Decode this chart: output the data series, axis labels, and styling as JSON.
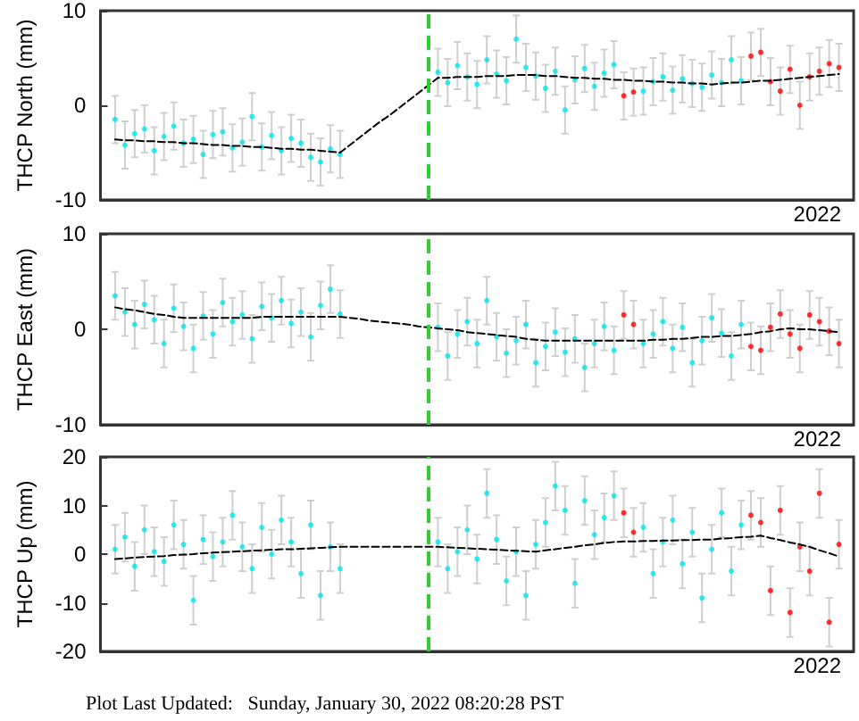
{
  "chart_data": [
    {
      "type": "scatter",
      "ylabel": "THCP North (mm)",
      "ylim": [
        -10,
        10
      ],
      "yticks": [
        -10,
        0,
        10
      ],
      "marker": "circle",
      "annotations": [
        "2022"
      ],
      "categories": [
        null,
        null,
        null,
        null,
        null,
        null,
        null,
        null,
        null,
        null,
        null,
        null,
        null,
        null,
        null,
        null,
        null,
        null,
        null,
        null,
        null,
        null,
        null,
        null,
        null,
        null,
        null,
        null,
        null,
        null,
        null,
        null,
        null,
        null,
        null,
        null,
        null,
        null,
        null,
        null,
        null,
        null,
        null,
        null,
        null,
        null,
        null,
        null,
        null,
        null,
        null,
        null,
        null,
        null,
        null,
        null,
        null,
        null,
        null,
        null,
        null,
        null,
        null,
        null,
        null,
        null,
        null,
        null,
        null,
        null,
        null,
        null,
        null,
        null,
        null,
        null,
        null
      ],
      "series": [
        {
          "color": "#00e5ee",
          "values": [
            null,
            -1.5,
            -4.2,
            -3.0,
            -2.5,
            -4.8,
            -3.3,
            -2.2,
            -4.0,
            -3.6,
            -5.2,
            -3.1,
            -2.8,
            -4.5,
            -3.9,
            -1.2,
            -4.4,
            -3.2,
            -4.8,
            -3.5,
            -4.0,
            -5.5,
            -6.0,
            -4.6,
            -5.2,
            null,
            null,
            null,
            null,
            null,
            null,
            null,
            null,
            null,
            3.5,
            2.4,
            4.2,
            3.0,
            2.2,
            4.8,
            3.3,
            2.6,
            7.0,
            4.0,
            3.1,
            1.8,
            3.6,
            -0.5,
            2.7,
            3.9,
            2.0,
            3.4,
            4.3,
            null,
            null,
            1.5,
            2.5,
            3.0,
            1.6,
            2.8,
            2.3,
            1.9,
            3.2,
            2.4,
            4.8,
            2.6,
            null,
            null,
            null,
            null,
            null,
            null,
            null,
            null,
            null,
            null,
            null
          ],
          "errors": [
            null,
            2.5,
            2.5,
            2.5,
            2.5,
            2.5,
            2.5,
            2.5,
            2.5,
            2.5,
            2.5,
            2.5,
            2.5,
            2.5,
            2.5,
            2.5,
            2.5,
            2.5,
            2.5,
            2.5,
            2.5,
            2.5,
            2.5,
            2.5,
            2.5,
            null,
            null,
            null,
            null,
            null,
            null,
            null,
            null,
            null,
            2.5,
            2.5,
            2.5,
            2.5,
            2.5,
            2.5,
            2.5,
            2.5,
            2.5,
            2.5,
            2.5,
            2.5,
            2.5,
            2.5,
            2.5,
            2.5,
            2.5,
            2.5,
            2.5,
            null,
            null,
            2.5,
            2.5,
            2.5,
            2.5,
            2.5,
            2.5,
            2.5,
            2.5,
            2.5,
            2.5,
            2.5,
            null,
            null,
            null,
            null,
            null,
            null,
            null,
            null,
            null,
            null,
            null
          ]
        },
        {
          "color": "#ff0000",
          "values": [
            null,
            null,
            null,
            null,
            null,
            null,
            null,
            null,
            null,
            null,
            null,
            null,
            null,
            null,
            null,
            null,
            null,
            null,
            null,
            null,
            null,
            null,
            null,
            null,
            null,
            null,
            null,
            null,
            null,
            null,
            null,
            null,
            null,
            null,
            null,
            null,
            null,
            null,
            null,
            null,
            null,
            null,
            null,
            null,
            null,
            null,
            null,
            null,
            null,
            null,
            null,
            null,
            null,
            1.0,
            1.4,
            null,
            null,
            null,
            null,
            null,
            null,
            null,
            null,
            null,
            null,
            null,
            5.2,
            5.6,
            2.5,
            1.5,
            3.8,
            0.0,
            3.0,
            3.6,
            4.4,
            4.0,
            null
          ],
          "errors": [
            null,
            null,
            null,
            null,
            null,
            null,
            null,
            null,
            null,
            null,
            null,
            null,
            null,
            null,
            null,
            null,
            null,
            null,
            null,
            null,
            null,
            null,
            null,
            null,
            null,
            null,
            null,
            null,
            null,
            null,
            null,
            null,
            null,
            null,
            null,
            null,
            null,
            null,
            null,
            null,
            null,
            null,
            null,
            null,
            null,
            null,
            null,
            null,
            null,
            null,
            null,
            null,
            null,
            2.5,
            2.5,
            null,
            null,
            null,
            null,
            null,
            null,
            null,
            null,
            null,
            null,
            null,
            2.5,
            2.5,
            2.5,
            2.5,
            2.5,
            2.5,
            2.5,
            2.5,
            2.5,
            2.5,
            null
          ]
        },
        {
          "type": "line",
          "color": "#000000",
          "line_style": "dashed",
          "marker": "none",
          "values": [
            null,
            -3.6,
            -3.7,
            -3.7,
            -3.8,
            -3.8,
            -3.9,
            -3.9,
            -4.0,
            -4.0,
            -4.1,
            -4.2,
            -4.2,
            -4.3,
            -4.3,
            -4.4,
            -4.4,
            -4.5,
            -4.6,
            -4.6,
            -4.7,
            -4.7,
            -4.8,
            -4.9,
            -5.0,
            -4.2,
            -3.4,
            -2.6,
            -1.8,
            -1.1,
            -0.3,
            0.5,
            1.3,
            2.1,
            2.9,
            2.9,
            3.0,
            3.0,
            3.0,
            3.1,
            3.1,
            3.1,
            3.2,
            3.2,
            3.2,
            3.1,
            3.1,
            3.0,
            2.9,
            2.9,
            2.8,
            2.8,
            2.7,
            2.7,
            2.6,
            2.6,
            2.5,
            2.5,
            2.4,
            2.4,
            2.3,
            2.3,
            2.2,
            2.3,
            2.4,
            2.4,
            2.5,
            2.6,
            2.6,
            2.7,
            2.8,
            2.9,
            3.0,
            3.1,
            3.2,
            3.3,
            null
          ]
        }
      ]
    },
    {
      "type": "scatter",
      "ylabel": "THCP East (mm)",
      "ylim": [
        -10,
        10
      ],
      "yticks": [
        -10,
        0,
        10
      ],
      "marker": "circle",
      "annotations": [
        "2022"
      ],
      "categories": [
        null,
        null,
        null,
        null,
        null,
        null,
        null,
        null,
        null,
        null,
        null,
        null,
        null,
        null,
        null,
        null,
        null,
        null,
        null,
        null,
        null,
        null,
        null,
        null,
        null,
        null,
        null,
        null,
        null,
        null,
        null,
        null,
        null,
        null,
        null,
        null,
        null,
        null,
        null,
        null,
        null,
        null,
        null,
        null,
        null,
        null,
        null,
        null,
        null,
        null,
        null,
        null,
        null,
        null,
        null,
        null,
        null,
        null,
        null,
        null,
        null,
        null,
        null,
        null,
        null,
        null,
        null,
        null,
        null,
        null,
        null,
        null,
        null,
        null,
        null,
        null,
        null
      ],
      "series": [
        {
          "color": "#00e5ee",
          "values": [
            null,
            3.5,
            1.8,
            0.5,
            2.6,
            1.0,
            -1.5,
            2.2,
            0.3,
            -2.0,
            1.4,
            -0.5,
            2.8,
            0.8,
            1.5,
            -1.0,
            2.4,
            1.2,
            3.0,
            0.6,
            1.8,
            -0.8,
            2.5,
            4.2,
            1.6,
            null,
            null,
            null,
            null,
            null,
            null,
            null,
            null,
            null,
            0.2,
            -2.8,
            -0.5,
            0.8,
            -1.5,
            3.0,
            -0.8,
            -2.5,
            -1.2,
            0.5,
            -3.5,
            -1.8,
            -0.3,
            -2.4,
            -1.0,
            -4.0,
            -1.5,
            0.3,
            -2.2,
            null,
            null,
            -1.5,
            -0.5,
            0.8,
            -2.0,
            0.2,
            -3.5,
            -1.2,
            1.2,
            -0.4,
            -2.8,
            0.5,
            null,
            null,
            null,
            null,
            null,
            null,
            null,
            null,
            null,
            null,
            null
          ],
          "errors": [
            null,
            2.5,
            2.5,
            2.5,
            2.5,
            2.5,
            2.5,
            2.5,
            2.5,
            2.5,
            2.5,
            2.5,
            2.5,
            2.5,
            2.5,
            2.5,
            2.5,
            2.5,
            2.5,
            2.5,
            2.5,
            2.5,
            2.5,
            2.5,
            2.5,
            null,
            null,
            null,
            null,
            null,
            null,
            null,
            null,
            null,
            2.5,
            2.5,
            2.5,
            2.5,
            2.5,
            2.5,
            2.5,
            2.5,
            2.5,
            2.5,
            2.5,
            2.5,
            2.5,
            2.5,
            2.5,
            2.5,
            2.5,
            2.5,
            2.5,
            null,
            null,
            2.5,
            2.5,
            2.5,
            2.5,
            2.5,
            2.5,
            2.5,
            2.5,
            2.5,
            2.5,
            2.5,
            null,
            null,
            null,
            null,
            null,
            null,
            null,
            null,
            null,
            null,
            null
          ]
        },
        {
          "color": "#ff0000",
          "values": [
            null,
            null,
            null,
            null,
            null,
            null,
            null,
            null,
            null,
            null,
            null,
            null,
            null,
            null,
            null,
            null,
            null,
            null,
            null,
            null,
            null,
            null,
            null,
            null,
            null,
            null,
            null,
            null,
            null,
            null,
            null,
            null,
            null,
            null,
            null,
            null,
            null,
            null,
            null,
            null,
            null,
            null,
            null,
            null,
            null,
            null,
            null,
            null,
            null,
            null,
            null,
            null,
            null,
            1.5,
            0.5,
            null,
            null,
            null,
            null,
            null,
            null,
            null,
            null,
            null,
            null,
            null,
            -1.8,
            -2.2,
            0.2,
            1.6,
            -0.5,
            -2.0,
            1.5,
            0.8,
            -0.2,
            -1.5,
            null
          ],
          "errors": [
            null,
            null,
            null,
            null,
            null,
            null,
            null,
            null,
            null,
            null,
            null,
            null,
            null,
            null,
            null,
            null,
            null,
            null,
            null,
            null,
            null,
            null,
            null,
            null,
            null,
            null,
            null,
            null,
            null,
            null,
            null,
            null,
            null,
            null,
            null,
            null,
            null,
            null,
            null,
            null,
            null,
            null,
            null,
            null,
            null,
            null,
            null,
            null,
            null,
            null,
            null,
            null,
            null,
            2.5,
            2.5,
            null,
            null,
            null,
            null,
            null,
            null,
            null,
            null,
            null,
            null,
            null,
            2.5,
            2.5,
            2.5,
            2.5,
            2.5,
            2.5,
            2.5,
            2.5,
            2.5,
            2.5,
            null
          ]
        },
        {
          "type": "line",
          "color": "#000000",
          "line_style": "dashed",
          "marker": "none",
          "values": [
            null,
            2.3,
            2.1,
            2.0,
            1.8,
            1.6,
            1.5,
            1.3,
            1.2,
            1.2,
            1.2,
            1.2,
            1.2,
            1.2,
            1.2,
            1.2,
            1.3,
            1.3,
            1.3,
            1.3,
            1.3,
            1.3,
            1.3,
            1.3,
            1.3,
            1.2,
            1.1,
            0.9,
            0.8,
            0.7,
            0.6,
            0.5,
            0.3,
            0.2,
            0.1,
            0.0,
            -0.1,
            -0.3,
            -0.4,
            -0.5,
            -0.6,
            -0.7,
            -0.8,
            -1.0,
            -1.1,
            -1.2,
            -1.2,
            -1.2,
            -1.2,
            -1.2,
            -1.2,
            -1.2,
            -1.2,
            -1.2,
            -1.2,
            -1.2,
            -1.1,
            -1.1,
            -1.0,
            -1.0,
            -0.9,
            -0.8,
            -0.8,
            -0.7,
            -0.7,
            -0.6,
            -0.5,
            -0.3,
            -0.2,
            0.0,
            0.1,
            0.0,
            0.0,
            -0.1,
            -0.2,
            -0.3,
            null
          ]
        }
      ]
    },
    {
      "type": "scatter",
      "ylabel": "THCP Up (mm)",
      "ylim": [
        -20,
        20
      ],
      "yticks": [
        -20,
        -10,
        0,
        10,
        20
      ],
      "marker": "circle",
      "annotations": [
        "2022",
        "Plot Last Updated:   Sunday, January 30, 2022 08:20:28 PST"
      ],
      "categories": [
        null,
        null,
        null,
        null,
        null,
        null,
        null,
        null,
        null,
        null,
        null,
        null,
        null,
        null,
        null,
        null,
        null,
        null,
        null,
        null,
        null,
        null,
        null,
        null,
        null,
        null,
        null,
        null,
        null,
        null,
        null,
        null,
        null,
        null,
        null,
        null,
        null,
        null,
        null,
        null,
        null,
        null,
        null,
        null,
        null,
        null,
        null,
        null,
        null,
        null,
        null,
        null,
        null,
        null,
        null,
        null,
        null,
        null,
        null,
        null,
        null,
        null,
        null,
        null,
        null,
        null,
        null,
        null,
        null,
        null,
        null,
        null,
        null,
        null,
        null,
        null,
        null
      ],
      "series": [
        {
          "color": "#00e5ee",
          "values": [
            null,
            1.0,
            3.5,
            -2.5,
            5.0,
            0.5,
            -1.5,
            6.0,
            2.0,
            -9.5,
            3.0,
            -0.5,
            2.5,
            8.0,
            1.5,
            -3.0,
            5.5,
            0.0,
            7.0,
            2.5,
            -4.0,
            6.0,
            -8.5,
            1.5,
            -3.0,
            null,
            null,
            null,
            null,
            null,
            null,
            null,
            null,
            null,
            2.5,
            -3.0,
            0.5,
            5.0,
            -1.0,
            12.5,
            3.0,
            -5.5,
            0.5,
            -8.5,
            2.0,
            6.5,
            14.0,
            9.0,
            -6.0,
            11.0,
            4.0,
            7.5,
            12.0,
            null,
            null,
            5.5,
            -4.0,
            2.5,
            7.0,
            -2.0,
            4.5,
            -9.0,
            1.0,
            8.5,
            -3.5,
            6.0,
            null,
            null,
            null,
            null,
            null,
            null,
            null,
            null,
            null,
            null,
            null
          ],
          "errors": [
            null,
            5,
            5,
            5,
            5,
            5,
            5,
            5,
            5,
            5,
            5,
            5,
            5,
            5,
            5,
            5,
            5,
            5,
            5,
            5,
            5,
            5,
            5,
            5,
            5,
            null,
            null,
            null,
            null,
            null,
            null,
            null,
            null,
            null,
            5,
            5,
            5,
            5,
            5,
            5,
            5,
            5,
            5,
            5,
            5,
            5,
            5,
            5,
            5,
            5,
            5,
            5,
            5,
            null,
            null,
            5,
            5,
            5,
            5,
            5,
            5,
            5,
            5,
            5,
            5,
            5,
            null,
            null,
            null,
            null,
            null,
            null,
            null,
            null,
            null,
            null,
            null
          ]
        },
        {
          "color": "#ff0000",
          "values": [
            null,
            null,
            null,
            null,
            null,
            null,
            null,
            null,
            null,
            null,
            null,
            null,
            null,
            null,
            null,
            null,
            null,
            null,
            null,
            null,
            null,
            null,
            null,
            null,
            null,
            null,
            null,
            null,
            null,
            null,
            null,
            null,
            null,
            null,
            null,
            null,
            null,
            null,
            null,
            null,
            null,
            null,
            null,
            null,
            null,
            null,
            null,
            null,
            null,
            null,
            null,
            null,
            null,
            8.5,
            4.5,
            null,
            null,
            null,
            null,
            null,
            null,
            null,
            null,
            null,
            null,
            null,
            8.0,
            6.5,
            -7.5,
            9.0,
            -12.0,
            1.5,
            -3.5,
            12.5,
            -14.0,
            2.0,
            null
          ],
          "errors": [
            null,
            null,
            null,
            null,
            null,
            null,
            null,
            null,
            null,
            null,
            null,
            null,
            null,
            null,
            null,
            null,
            null,
            null,
            null,
            null,
            null,
            null,
            null,
            null,
            null,
            null,
            null,
            null,
            null,
            null,
            null,
            null,
            null,
            null,
            null,
            null,
            null,
            null,
            null,
            null,
            null,
            null,
            null,
            null,
            null,
            null,
            null,
            null,
            null,
            null,
            null,
            null,
            null,
            5,
            5,
            null,
            null,
            null,
            null,
            null,
            null,
            null,
            null,
            null,
            null,
            null,
            5,
            5,
            5,
            5,
            5,
            5,
            5,
            5,
            5,
            5,
            null
          ]
        },
        {
          "type": "line",
          "color": "#000000",
          "line_style": "dashed",
          "marker": "none",
          "values": [
            null,
            -1.0,
            -0.9,
            -0.7,
            -0.6,
            -0.5,
            -0.4,
            -0.2,
            -0.1,
            0.0,
            0.2,
            0.3,
            0.4,
            0.5,
            0.6,
            0.7,
            0.8,
            0.9,
            1.0,
            1.0,
            1.1,
            1.2,
            1.3,
            1.4,
            1.5,
            1.5,
            1.5,
            1.5,
            1.5,
            1.5,
            1.5,
            1.5,
            1.5,
            1.5,
            1.5,
            1.4,
            1.3,
            1.2,
            1.1,
            1.0,
            0.9,
            0.8,
            0.7,
            0.6,
            0.5,
            0.8,
            1.0,
            1.3,
            1.5,
            1.8,
            2.0,
            2.3,
            2.5,
            2.6,
            2.6,
            2.7,
            2.7,
            2.8,
            2.8,
            2.9,
            2.9,
            3.0,
            3.0,
            3.2,
            3.3,
            3.5,
            3.6,
            3.8,
            3.3,
            2.9,
            2.4,
            2.0,
            1.5,
            0.8,
            0.2,
            -0.5,
            null
          ]
        }
      ]
    }
  ]
}
